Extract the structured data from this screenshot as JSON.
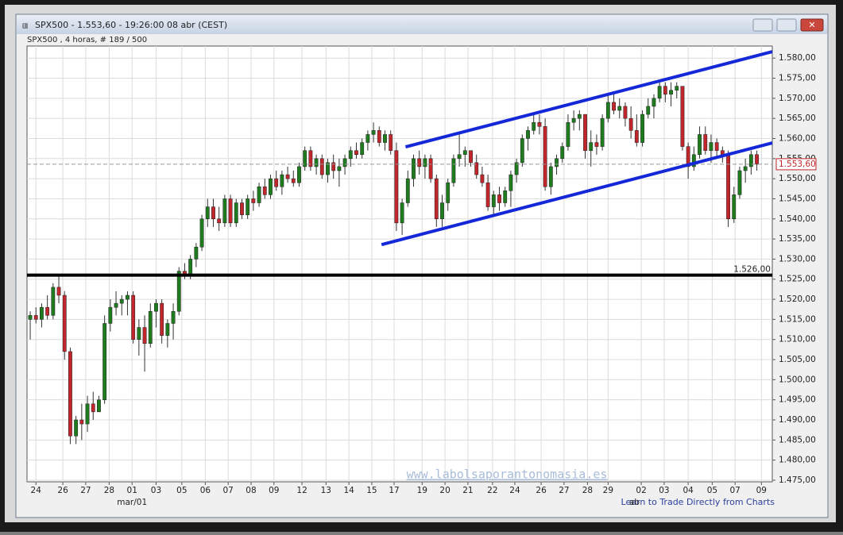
{
  "window_title": "SPX500 - 1.553,60 - 19:26:00  08 abr (CEST)",
  "subtitle": "SPX500 , 4 horas, # 189 / 500",
  "watermark": "www.labolsaporantonomasia.es",
  "link": "Learn to Trade Directly from Charts",
  "chart_data": {
    "type": "candlestick",
    "up_color": "#1e7b1e",
    "down_color": "#c0262b",
    "channel_color": "#1428d8",
    "grid": true,
    "xlim": [
      -0.56,
      129.7
    ],
    "ylim": [
      1474.6,
      1583
    ],
    "yticks": [
      {
        "value": 1475,
        "label": "1.475,00"
      },
      {
        "value": 1480,
        "label": "1.480,00"
      },
      {
        "value": 1485,
        "label": "1.485,00"
      },
      {
        "value": 1490,
        "label": "1.490,00"
      },
      {
        "value": 1495,
        "label": "1.495,00"
      },
      {
        "value": 1500,
        "label": "1.500,00"
      },
      {
        "value": 1505,
        "label": "1.505,00"
      },
      {
        "value": 1510,
        "label": "1.510,00"
      },
      {
        "value": 1515,
        "label": "1.515,00"
      },
      {
        "value": 1520,
        "label": "1.520,00"
      },
      {
        "value": 1525,
        "label": "1.525,00"
      },
      {
        "value": 1530,
        "label": "1.530,00"
      },
      {
        "value": 1535,
        "label": "1.535,00"
      },
      {
        "value": 1540,
        "label": "1.540,00"
      },
      {
        "value": 1545,
        "label": "1.545,00"
      },
      {
        "value": 1550,
        "label": "1.550,00"
      },
      {
        "value": 1555,
        "label": "1.555,00"
      },
      {
        "value": 1560,
        "label": "1.560,00"
      },
      {
        "value": 1565,
        "label": "1.565,00"
      },
      {
        "value": 1570,
        "label": "1.570,00"
      },
      {
        "value": 1575,
        "label": "1.575,00"
      },
      {
        "value": 1580,
        "label": "1.580,00"
      }
    ],
    "xticks": [
      {
        "value": 1,
        "label": "24"
      },
      {
        "value": 5.7,
        "label": "26"
      },
      {
        "value": 9.7,
        "label": "27"
      },
      {
        "value": 13.8,
        "label": "28"
      },
      {
        "value": 17.8,
        "label": "01"
      },
      {
        "value": 22,
        "label": "03"
      },
      {
        "value": 26.5,
        "label": "05"
      },
      {
        "value": 30.6,
        "label": "06"
      },
      {
        "value": 34.6,
        "label": "07"
      },
      {
        "value": 38.6,
        "label": "08"
      },
      {
        "value": 42.6,
        "label": "09"
      },
      {
        "value": 47.5,
        "label": "12"
      },
      {
        "value": 51.7,
        "label": "13"
      },
      {
        "value": 55.7,
        "label": "14"
      },
      {
        "value": 59.7,
        "label": "15"
      },
      {
        "value": 63.6,
        "label": "17"
      },
      {
        "value": 68.5,
        "label": "19"
      },
      {
        "value": 72.5,
        "label": "20"
      },
      {
        "value": 76.5,
        "label": "21"
      },
      {
        "value": 80.8,
        "label": "22"
      },
      {
        "value": 84.7,
        "label": "24"
      },
      {
        "value": 89.3,
        "label": "26"
      },
      {
        "value": 93.3,
        "label": "27"
      },
      {
        "value": 97.4,
        "label": "28"
      },
      {
        "value": 101,
        "label": "29"
      },
      {
        "value": 106.8,
        "label": "02"
      },
      {
        "value": 110.8,
        "label": "03"
      },
      {
        "value": 115,
        "label": "04"
      },
      {
        "value": 119.2,
        "label": "05"
      },
      {
        "value": 123.2,
        "label": "07"
      },
      {
        "value": 127.8,
        "label": "09"
      }
    ],
    "period_labels": [
      {
        "value": 17.8,
        "label": "mar/01"
      },
      {
        "value": 105.6,
        "label": "ab"
      }
    ],
    "hline": {
      "value": 1526,
      "label": "1.526,00"
    },
    "last_price": {
      "value": 1553.6,
      "label": "1.553,60"
    },
    "channel": [
      {
        "x": [
          61.4,
          129.7
        ],
        "y": [
          1533.6,
          1558.9
        ]
      },
      {
        "x": [
          65.6,
          129.7
        ],
        "y": [
          1557.9,
          1581.6
        ]
      }
    ],
    "candles": [
      [
        1515,
        1517,
        1510,
        1516
      ],
      [
        1516,
        1518,
        1514,
        1515
      ],
      [
        1515,
        1519,
        1513,
        1518
      ],
      [
        1518,
        1521,
        1515,
        1516
      ],
      [
        1516,
        1524,
        1515,
        1523
      ],
      [
        1523,
        1526,
        1519,
        1521
      ],
      [
        1521,
        1522,
        1505,
        1507
      ],
      [
        1507,
        1508,
        1484,
        1486
      ],
      [
        1486,
        1491,
        1484,
        1490
      ],
      [
        1490,
        1494,
        1485,
        1489
      ],
      [
        1489,
        1496,
        1487,
        1494
      ],
      [
        1494,
        1497,
        1490,
        1492
      ],
      [
        1492,
        1496,
        1492,
        1495
      ],
      [
        1495,
        1516,
        1494,
        1514
      ],
      [
        1514,
        1520,
        1512,
        1518
      ],
      [
        1518,
        1522,
        1516,
        1519
      ],
      [
        1519,
        1521,
        1516,
        1520
      ],
      [
        1520,
        1522,
        1516,
        1521
      ],
      [
        1521,
        1522,
        1509,
        1510
      ],
      [
        1510,
        1515,
        1506,
        1513
      ],
      [
        1513,
        1516,
        1502,
        1509
      ],
      [
        1509,
        1519,
        1508,
        1517
      ],
      [
        1517,
        1520,
        1513,
        1519
      ],
      [
        1519,
        1520,
        1509,
        1511
      ],
      [
        1511,
        1515,
        1508,
        1514
      ],
      [
        1514,
        1519,
        1510,
        1517
      ],
      [
        1517,
        1528,
        1516,
        1527
      ],
      [
        1527,
        1529,
        1525,
        1526
      ],
      [
        1526,
        1531,
        1525,
        1530
      ],
      [
        1530,
        1534,
        1528,
        1533
      ],
      [
        1533,
        1541,
        1532,
        1540
      ],
      [
        1540,
        1545,
        1538,
        1543
      ],
      [
        1543,
        1545,
        1538,
        1540
      ],
      [
        1540,
        1543,
        1537,
        1539
      ],
      [
        1539,
        1546,
        1538,
        1545
      ],
      [
        1545,
        1546,
        1538,
        1539
      ],
      [
        1539,
        1545,
        1538,
        1544
      ],
      [
        1544,
        1545,
        1540,
        1541
      ],
      [
        1541,
        1546,
        1540,
        1545
      ],
      [
        1545,
        1547,
        1542,
        1544
      ],
      [
        1544,
        1549,
        1543,
        1548
      ],
      [
        1548,
        1550,
        1545,
        1546
      ],
      [
        1546,
        1551,
        1545,
        1550
      ],
      [
        1550,
        1552,
        1547,
        1548
      ],
      [
        1548,
        1552,
        1546,
        1551
      ],
      [
        1551,
        1553,
        1549,
        1550
      ],
      [
        1550,
        1552,
        1548,
        1549
      ],
      [
        1549,
        1554,
        1548,
        1553
      ],
      [
        1553,
        1558,
        1552,
        1557
      ],
      [
        1557,
        1558,
        1552,
        1553
      ],
      [
        1553,
        1556,
        1551,
        1555
      ],
      [
        1555,
        1556,
        1550,
        1551
      ],
      [
        1551,
        1555,
        1549,
        1554
      ],
      [
        1554,
        1556,
        1550,
        1552
      ],
      [
        1552,
        1555,
        1548,
        1553
      ],
      [
        1553,
        1556,
        1551,
        1555
      ],
      [
        1555,
        1558,
        1553,
        1557
      ],
      [
        1557,
        1559,
        1555,
        1556
      ],
      [
        1556,
        1560,
        1555,
        1559
      ],
      [
        1559,
        1562,
        1557,
        1561
      ],
      [
        1561,
        1564,
        1559,
        1562
      ],
      [
        1562,
        1563,
        1558,
        1559
      ],
      [
        1559,
        1562,
        1557,
        1561
      ],
      [
        1561,
        1562,
        1556,
        1557
      ],
      [
        1557,
        1559,
        1537,
        1539
      ],
      [
        1539,
        1545,
        1536,
        1544
      ],
      [
        1544,
        1552,
        1543,
        1550
      ],
      [
        1550,
        1556,
        1548,
        1555
      ],
      [
        1555,
        1557,
        1551,
        1553
      ],
      [
        1553,
        1556,
        1550,
        1555
      ],
      [
        1555,
        1556,
        1549,
        1550
      ],
      [
        1550,
        1551,
        1538,
        1540
      ],
      [
        1540,
        1546,
        1538,
        1544
      ],
      [
        1544,
        1550,
        1542,
        1549
      ],
      [
        1549,
        1556,
        1548,
        1555
      ],
      [
        1555,
        1561,
        1553,
        1556
      ],
      [
        1556,
        1558,
        1553,
        1557
      ],
      [
        1557,
        1557,
        1553,
        1554
      ],
      [
        1554,
        1556,
        1550,
        1551
      ],
      [
        1551,
        1553,
        1548,
        1549
      ],
      [
        1549,
        1551,
        1542,
        1543
      ],
      [
        1543,
        1547,
        1541,
        1546
      ],
      [
        1546,
        1548,
        1542,
        1544
      ],
      [
        1544,
        1548,
        1543,
        1547
      ],
      [
        1547,
        1552,
        1543,
        1551
      ],
      [
        1551,
        1555,
        1549,
        1554
      ],
      [
        1554,
        1561,
        1553,
        1560
      ],
      [
        1560,
        1563,
        1557,
        1562
      ],
      [
        1562,
        1566,
        1561,
        1564
      ],
      [
        1564,
        1566,
        1561,
        1563
      ],
      [
        1563,
        1565,
        1547,
        1548
      ],
      [
        1548,
        1554,
        1546,
        1553
      ],
      [
        1553,
        1556,
        1551,
        1555
      ],
      [
        1555,
        1559,
        1554,
        1558
      ],
      [
        1558,
        1566,
        1557,
        1564
      ],
      [
        1564,
        1567,
        1562,
        1565
      ],
      [
        1565,
        1567,
        1562,
        1566
      ],
      [
        1566,
        1566,
        1555,
        1557
      ],
      [
        1557,
        1562,
        1553,
        1559
      ],
      [
        1559,
        1561,
        1556,
        1558
      ],
      [
        1558,
        1566,
        1557,
        1565
      ],
      [
        1565,
        1571,
        1564,
        1569
      ],
      [
        1569,
        1571,
        1566,
        1567
      ],
      [
        1567,
        1570,
        1565,
        1568
      ],
      [
        1568,
        1569,
        1563,
        1565
      ],
      [
        1565,
        1568,
        1560,
        1562
      ],
      [
        1562,
        1566,
        1558,
        1559
      ],
      [
        1559,
        1567,
        1558,
        1566
      ],
      [
        1566,
        1570,
        1565,
        1568
      ],
      [
        1568,
        1571,
        1565,
        1570
      ],
      [
        1570,
        1574,
        1569,
        1573
      ],
      [
        1573,
        1574,
        1569,
        1571
      ],
      [
        1571,
        1574,
        1568,
        1572
      ],
      [
        1572,
        1574,
        1570,
        1573
      ],
      [
        1573,
        1573,
        1557,
        1558
      ],
      [
        1558,
        1559,
        1550,
        1553
      ],
      [
        1553,
        1558,
        1552,
        1556
      ],
      [
        1556,
        1563,
        1555,
        1561
      ],
      [
        1561,
        1563,
        1556,
        1557
      ],
      [
        1557,
        1561,
        1554,
        1559
      ],
      [
        1559,
        1560,
        1555,
        1557
      ],
      [
        1557,
        1558,
        1554,
        1556
      ],
      [
        1556,
        1557,
        1538,
        1540
      ],
      [
        1540,
        1548,
        1539,
        1546
      ],
      [
        1546,
        1553,
        1545,
        1552
      ],
      [
        1552,
        1555,
        1549,
        1553
      ],
      [
        1553,
        1557,
        1551,
        1556
      ],
      [
        1556,
        1557,
        1552,
        1553.6
      ]
    ]
  }
}
